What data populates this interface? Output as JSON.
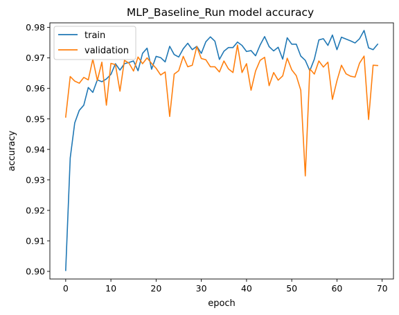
{
  "chart_data": {
    "type": "line",
    "title": "MLP_Baseline_Run model accuracy",
    "xlabel": "epoch",
    "ylabel": "accuracy",
    "xlim": [
      -3.5,
      72.5
    ],
    "ylim": [
      0.8975,
      0.9815
    ],
    "xticks": [
      0,
      10,
      20,
      30,
      40,
      50,
      60,
      70
    ],
    "yticks": [
      0.9,
      0.91,
      0.92,
      0.93,
      0.94,
      0.95,
      0.96,
      0.97,
      0.98
    ],
    "grid": false,
    "legend_position": "upper-left",
    "x": [
      0,
      1,
      2,
      3,
      4,
      5,
      6,
      7,
      8,
      9,
      10,
      11,
      12,
      13,
      14,
      15,
      16,
      17,
      18,
      19,
      20,
      21,
      22,
      23,
      24,
      25,
      26,
      27,
      28,
      29,
      30,
      31,
      32,
      33,
      34,
      35,
      36,
      37,
      38,
      39,
      40,
      41,
      42,
      43,
      44,
      45,
      46,
      47,
      48,
      49,
      50,
      51,
      52,
      53,
      54,
      55,
      56,
      57,
      58,
      59,
      60,
      61,
      62,
      63,
      64,
      65,
      66,
      67,
      68,
      69
    ],
    "series": [
      {
        "name": "train",
        "color": "#1f77b4",
        "values": [
          0.9003,
          0.9372,
          0.9487,
          0.9528,
          0.9545,
          0.9603,
          0.9587,
          0.9628,
          0.9622,
          0.9631,
          0.9646,
          0.9681,
          0.966,
          0.9681,
          0.9685,
          0.969,
          0.9658,
          0.9715,
          0.9732,
          0.9663,
          0.9705,
          0.9701,
          0.9687,
          0.9738,
          0.9711,
          0.9703,
          0.973,
          0.9748,
          0.9727,
          0.9738,
          0.9715,
          0.9753,
          0.9769,
          0.9755,
          0.9695,
          0.9722,
          0.9734,
          0.9734,
          0.9752,
          0.9741,
          0.9721,
          0.9724,
          0.9707,
          0.9742,
          0.977,
          0.9737,
          0.9723,
          0.9735,
          0.9696,
          0.9766,
          0.9745,
          0.9745,
          0.9706,
          0.9692,
          0.9658,
          0.9696,
          0.9759,
          0.9763,
          0.9741,
          0.9775,
          0.9727,
          0.9768,
          0.9762,
          0.9756,
          0.9749,
          0.9763,
          0.979,
          0.9733,
          0.9727,
          0.9745
        ]
      },
      {
        "name": "validation",
        "color": "#ff7f0e",
        "values": [
          0.9506,
          0.9639,
          0.9624,
          0.9617,
          0.9636,
          0.9628,
          0.9696,
          0.9626,
          0.9686,
          0.9545,
          0.9682,
          0.9678,
          0.9591,
          0.9692,
          0.9683,
          0.9657,
          0.9703,
          0.9681,
          0.97,
          0.9682,
          0.9666,
          0.9644,
          0.9654,
          0.9508,
          0.9647,
          0.9658,
          0.9705,
          0.9671,
          0.9676,
          0.9737,
          0.9698,
          0.9694,
          0.9671,
          0.9671,
          0.9654,
          0.969,
          0.9664,
          0.9652,
          0.9742,
          0.9652,
          0.9681,
          0.9594,
          0.9657,
          0.9692,
          0.9702,
          0.9609,
          0.9652,
          0.9627,
          0.9641,
          0.9699,
          0.9661,
          0.9642,
          0.9594,
          0.9313,
          0.9664,
          0.9647,
          0.969,
          0.967,
          0.9686,
          0.9564,
          0.9625,
          0.9676,
          0.9648,
          0.964,
          0.9637,
          0.9683,
          0.9706,
          0.9498,
          0.9676,
          0.9675
        ]
      }
    ]
  }
}
